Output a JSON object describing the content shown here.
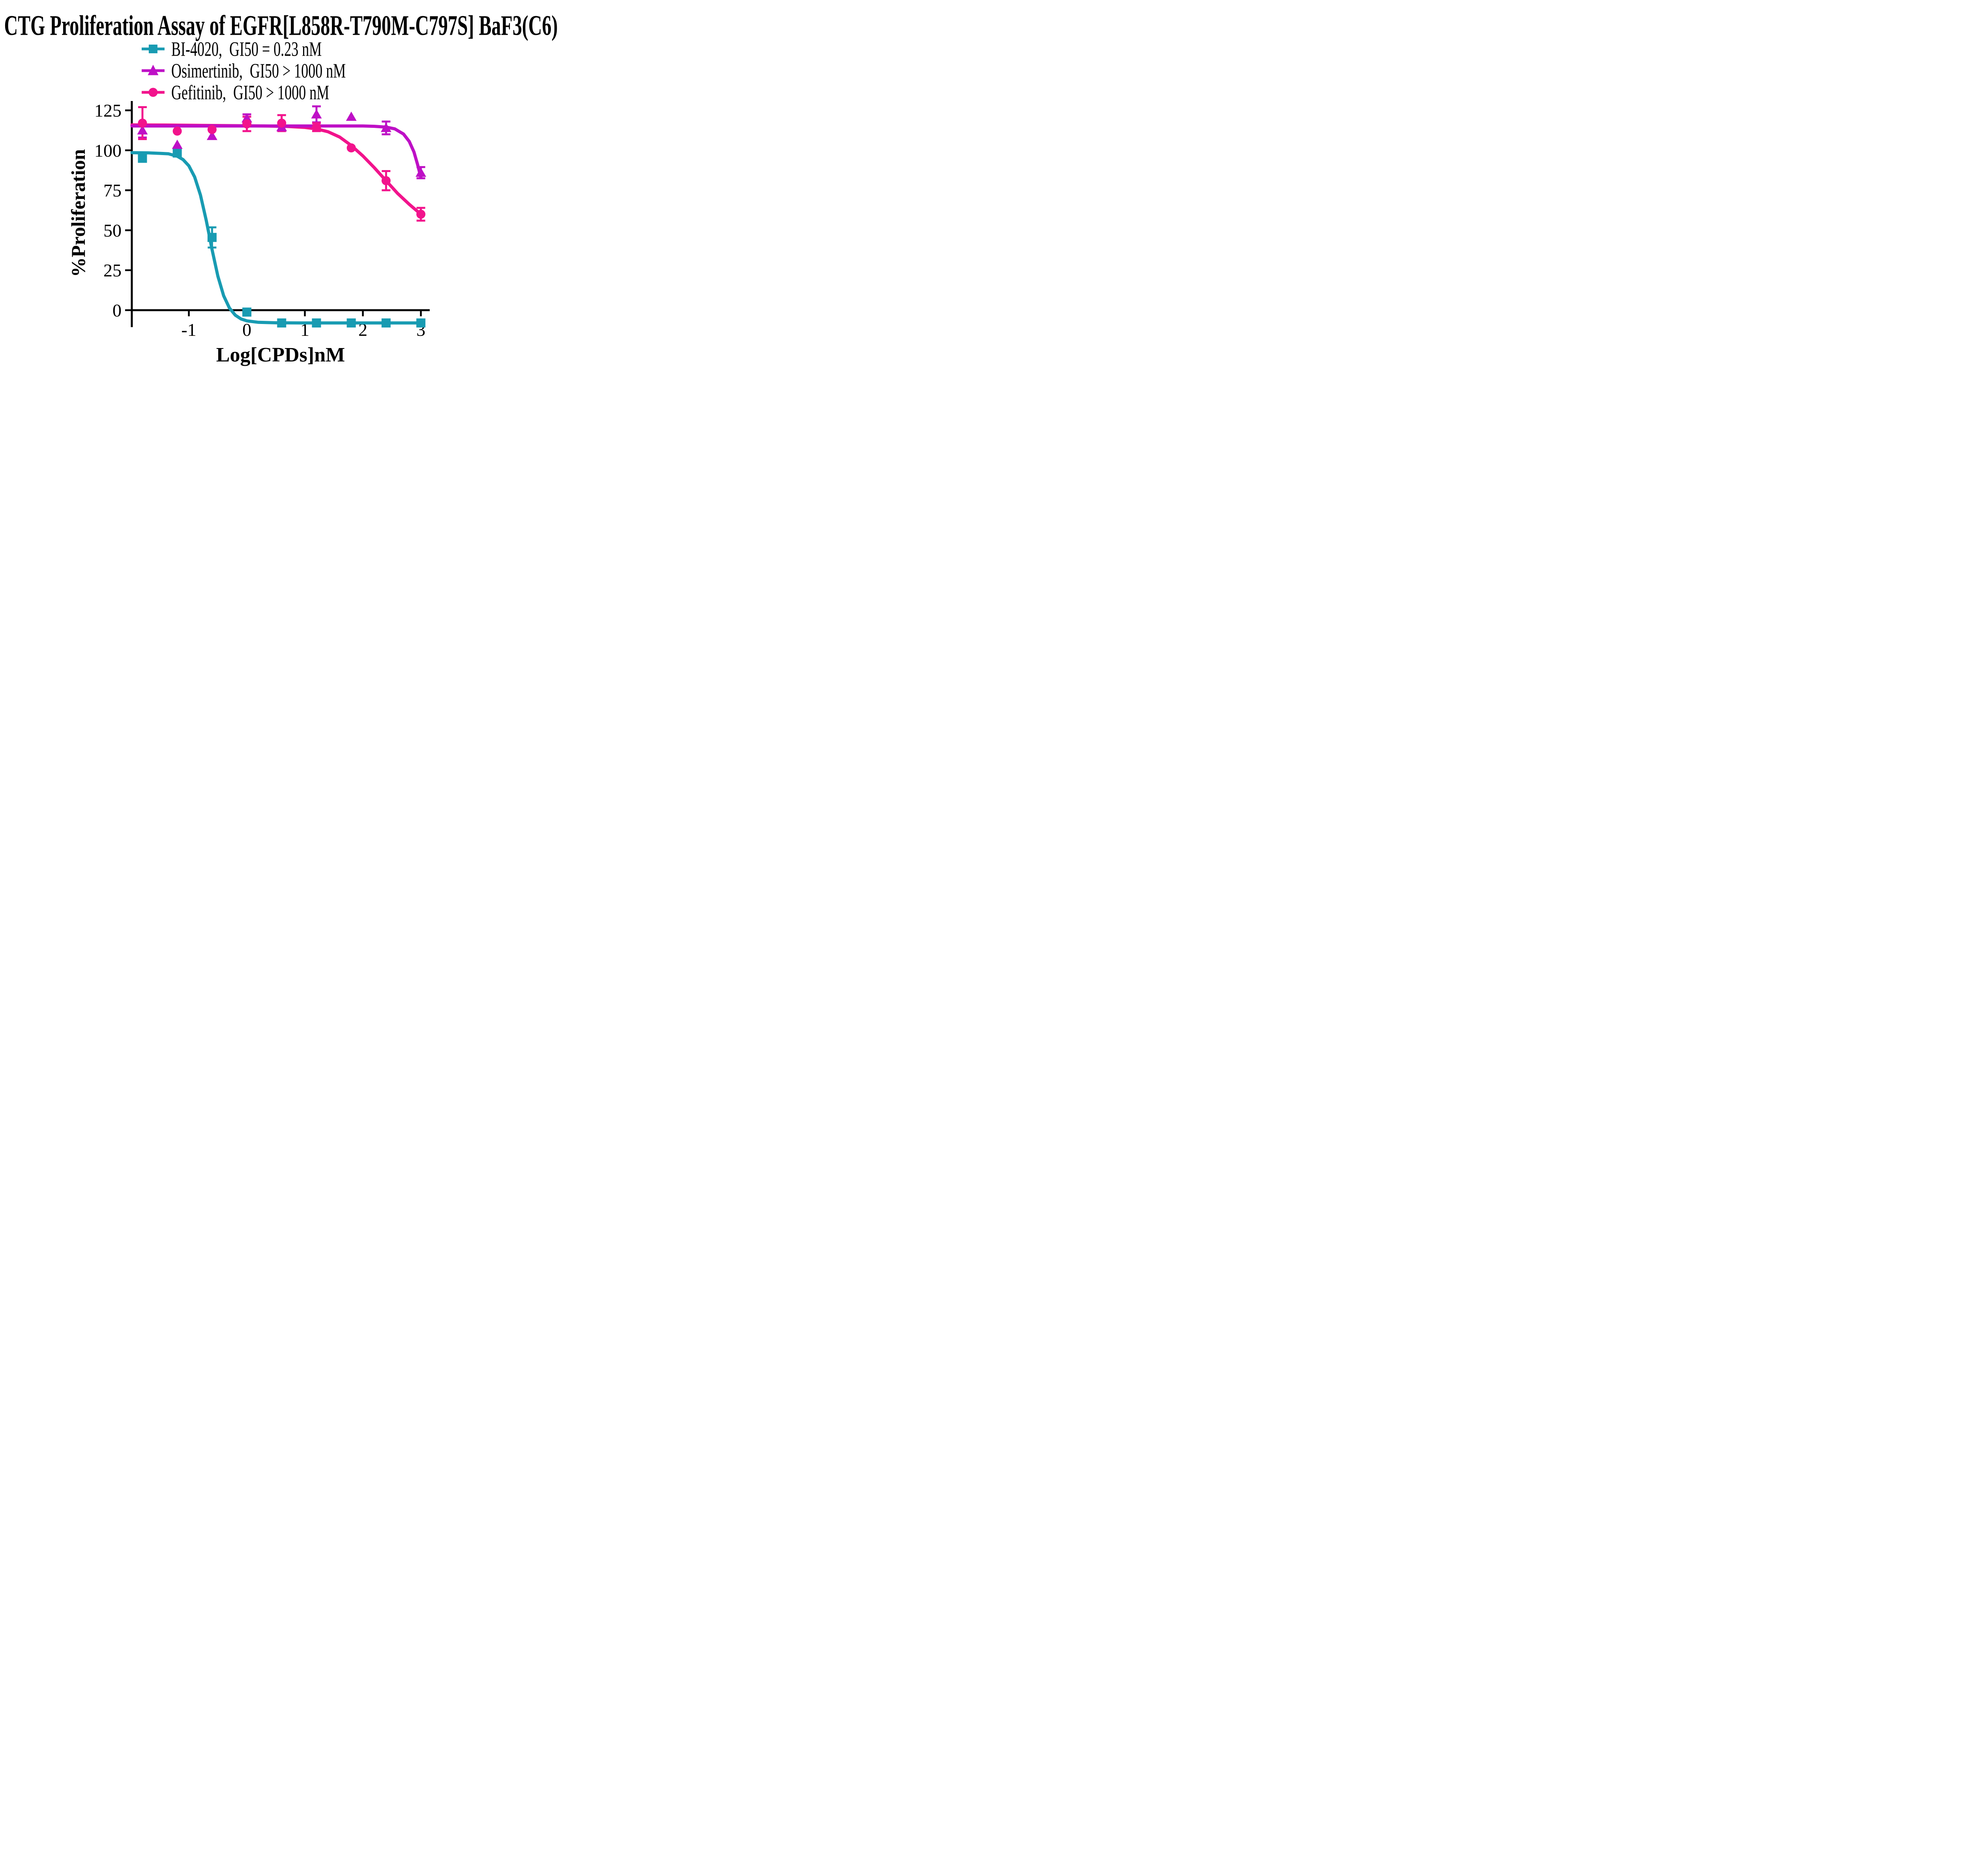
{
  "title": "CTG Proliferation Assay of EGFR[L858R-T790M-C797S] BaF3(C6)",
  "legend": [
    {
      "label": "BI-4020,  GI50 = 0.23 nM",
      "marker": "square",
      "color": "#189BB2"
    },
    {
      "label": "Osimertinib,  GI50 > 1000 nM",
      "marker": "triangle",
      "color": "#BE10C6"
    },
    {
      "label": "Gefitinib,  GI50 > 1000 nM",
      "marker": "circle",
      "color": "#F2138C"
    }
  ],
  "chart_data": {
    "type": "line",
    "title": "CTG Proliferation Assay of EGFR[L858R-T790M-C797S] BaF3(C6)",
    "xlabel": "Log[CPDs]nM",
    "ylabel": "%Proliferation",
    "x_ticks": [
      -1,
      0,
      1,
      2,
      3
    ],
    "y_ticks": [
      0,
      25,
      50,
      75,
      100,
      125
    ],
    "xlim": [
      -1.98,
      3.05
    ],
    "ylim": [
      -11,
      131
    ],
    "grid": false,
    "legend_position": "top-left",
    "axis_color": "#000000",
    "series": [
      {
        "name": "BI-4020",
        "gi50": "GI50 = 0.23 nM",
        "marker": "square",
        "color": "#189BB2",
        "points": [
          {
            "x": -1.8,
            "y": 95,
            "err": 0
          },
          {
            "x": -1.2,
            "y": 98.3,
            "err": 0
          },
          {
            "x": -0.6,
            "y": 45.5,
            "err": 6.3
          },
          {
            "x": 0,
            "y": -1.2,
            "err": 0
          },
          {
            "x": 0.6,
            "y": -8,
            "err": 0
          },
          {
            "x": 1.2,
            "y": -8,
            "err": 0
          },
          {
            "x": 1.8,
            "y": -8,
            "err": 0
          },
          {
            "x": 2.4,
            "y": -8,
            "err": 0
          },
          {
            "x": 3,
            "y": -8,
            "err": 0
          }
        ],
        "curve": [
          [
            -1.98,
            98.5
          ],
          [
            -1.7,
            98.4
          ],
          [
            -1.5,
            98.1
          ],
          [
            -1.35,
            97.8
          ],
          [
            -1.2,
            96.3
          ],
          [
            -1.1,
            94.2
          ],
          [
            -1.0,
            90.3
          ],
          [
            -0.9,
            83.3
          ],
          [
            -0.8,
            72.0
          ],
          [
            -0.7,
            56.1
          ],
          [
            -0.64,
            45.3
          ],
          [
            -0.6,
            37.9
          ],
          [
            -0.5,
            21.3
          ],
          [
            -0.4,
            9.0
          ],
          [
            -0.3,
            1.3
          ],
          [
            -0.2,
            -3.1
          ],
          [
            -0.1,
            -5.5
          ],
          [
            0,
            -6.7
          ],
          [
            0.2,
            -7.6
          ],
          [
            0.5,
            -7.9
          ],
          [
            1,
            -8
          ],
          [
            2,
            -8
          ],
          [
            3,
            -8
          ]
        ]
      },
      {
        "name": "Osimertinib",
        "gi50": "GI50 > 1000 nM",
        "marker": "triangle",
        "color": "#BE10C6",
        "points": [
          {
            "x": -1.8,
            "y": 112.5,
            "err": 4.5
          },
          {
            "x": -1.2,
            "y": 103.5,
            "err": 0
          },
          {
            "x": -0.6,
            "y": 109,
            "err": 0
          },
          {
            "x": 0,
            "y": 120,
            "err": 2.5
          },
          {
            "x": 0.6,
            "y": 114.5,
            "err": 0
          },
          {
            "x": 1.2,
            "y": 122.5,
            "err": 5
          },
          {
            "x": 1.8,
            "y": 121,
            "err": 0
          },
          {
            "x": 2.4,
            "y": 114,
            "err": 4
          },
          {
            "x": 3,
            "y": 86,
            "err": 3.5
          }
        ],
        "curve": [
          [
            -1.98,
            115.2
          ],
          [
            -0.5,
            115.2
          ],
          [
            0.5,
            115.2
          ],
          [
            1.5,
            115.2
          ],
          [
            2.0,
            115.2
          ],
          [
            2.2,
            115.0
          ],
          [
            2.4,
            114.5
          ],
          [
            2.55,
            113.4
          ],
          [
            2.7,
            110.2
          ],
          [
            2.8,
            105.5
          ],
          [
            2.88,
            99.0
          ],
          [
            2.94,
            91.5
          ],
          [
            3.0,
            83.0
          ]
        ]
      },
      {
        "name": "Gefitinib",
        "gi50": "GI50 > 1000 nM",
        "marker": "circle",
        "color": "#F2138C",
        "points": [
          {
            "x": -1.8,
            "y": 117,
            "err": 10
          },
          {
            "x": -1.2,
            "y": 112,
            "err": 0
          },
          {
            "x": -0.6,
            "y": 113,
            "err": 0
          },
          {
            "x": 0,
            "y": 116.5,
            "err": 4.5
          },
          {
            "x": 0.6,
            "y": 117,
            "err": 5
          },
          {
            "x": 1.2,
            "y": 114.5,
            "err": 2.5
          },
          {
            "x": 1.8,
            "y": 101.5,
            "err": 0
          },
          {
            "x": 2.4,
            "y": 81,
            "err": 6
          },
          {
            "x": 3,
            "y": 60,
            "err": 4
          }
        ],
        "curve": [
          [
            -1.98,
            115.9
          ],
          [
            -1.4,
            115.8
          ],
          [
            -0.8,
            115.6
          ],
          [
            -0.2,
            115.4
          ],
          [
            0.3,
            115.2
          ],
          [
            0.7,
            114.9
          ],
          [
            1.0,
            114.3
          ],
          [
            1.2,
            113.4
          ],
          [
            1.4,
            111.6
          ],
          [
            1.6,
            108.3
          ],
          [
            1.8,
            103.0
          ],
          [
            2.0,
            96.5
          ],
          [
            2.2,
            89.0
          ],
          [
            2.4,
            81.0
          ],
          [
            2.6,
            73.0
          ],
          [
            2.8,
            66.2
          ],
          [
            3.0,
            60.0
          ]
        ]
      }
    ]
  }
}
